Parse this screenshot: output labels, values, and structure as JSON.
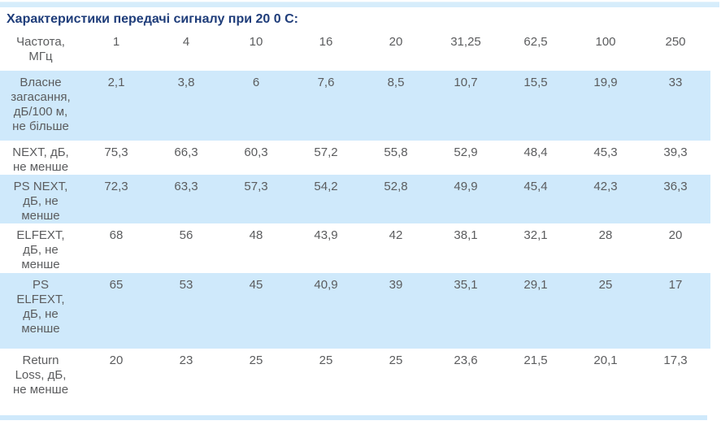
{
  "page": {
    "title": "Характеристики передачі сигналу при 20 0 С:"
  },
  "table": {
    "header": {
      "label": "Частота,\nМГц",
      "values": [
        "1",
        "4",
        "10",
        "16",
        "20",
        "31,25",
        "62,5",
        "100",
        "250"
      ]
    },
    "rows": [
      {
        "label": "Власне\nзагасання,\nдБ/100 м,\nне більше",
        "values": [
          "2,1",
          "3,8",
          "6",
          "7,6",
          "8,5",
          "10,7",
          "15,5",
          "19,9",
          "33"
        ],
        "shaded": true
      },
      {
        "label": "NEXT, дБ,\nне менше",
        "values": [
          "75,3",
          "66,3",
          "60,3",
          "57,2",
          "55,8",
          "52,9",
          "48,4",
          "45,3",
          "39,3"
        ],
        "shaded": false
      },
      {
        "label": "PS NEXT,\nдБ, не\nменше",
        "values": [
          "72,3",
          "63,3",
          "57,3",
          "54,2",
          "52,8",
          "49,9",
          "45,4",
          "42,3",
          "36,3"
        ],
        "shaded": true
      },
      {
        "label": "ELFEXT,\nдБ, не\nменше",
        "values": [
          "68",
          "56",
          "48",
          "43,9",
          "42",
          "38,1",
          "32,1",
          "28",
          "20"
        ],
        "shaded": false
      },
      {
        "label": "PS\nELFEXT,\nдБ, не\nменше",
        "values": [
          "65",
          "53",
          "45",
          "40,9",
          "39",
          "35,1",
          "29,1",
          "25",
          "17"
        ],
        "shaded": true
      },
      {
        "label": "Return\nLoss, дБ,\nне менше",
        "values": [
          "20",
          "23",
          "25",
          "25",
          "25",
          "23,6",
          "21,5",
          "20,1",
          "17,3"
        ],
        "shaded": false
      }
    ]
  },
  "colors": {
    "title_text": "#1f3d7a",
    "row_shade": "#cfe9fb",
    "cell_text": "#5b5c5e",
    "top_strip": "#d6edfb",
    "bottom_strip": "#cfe9fb"
  }
}
